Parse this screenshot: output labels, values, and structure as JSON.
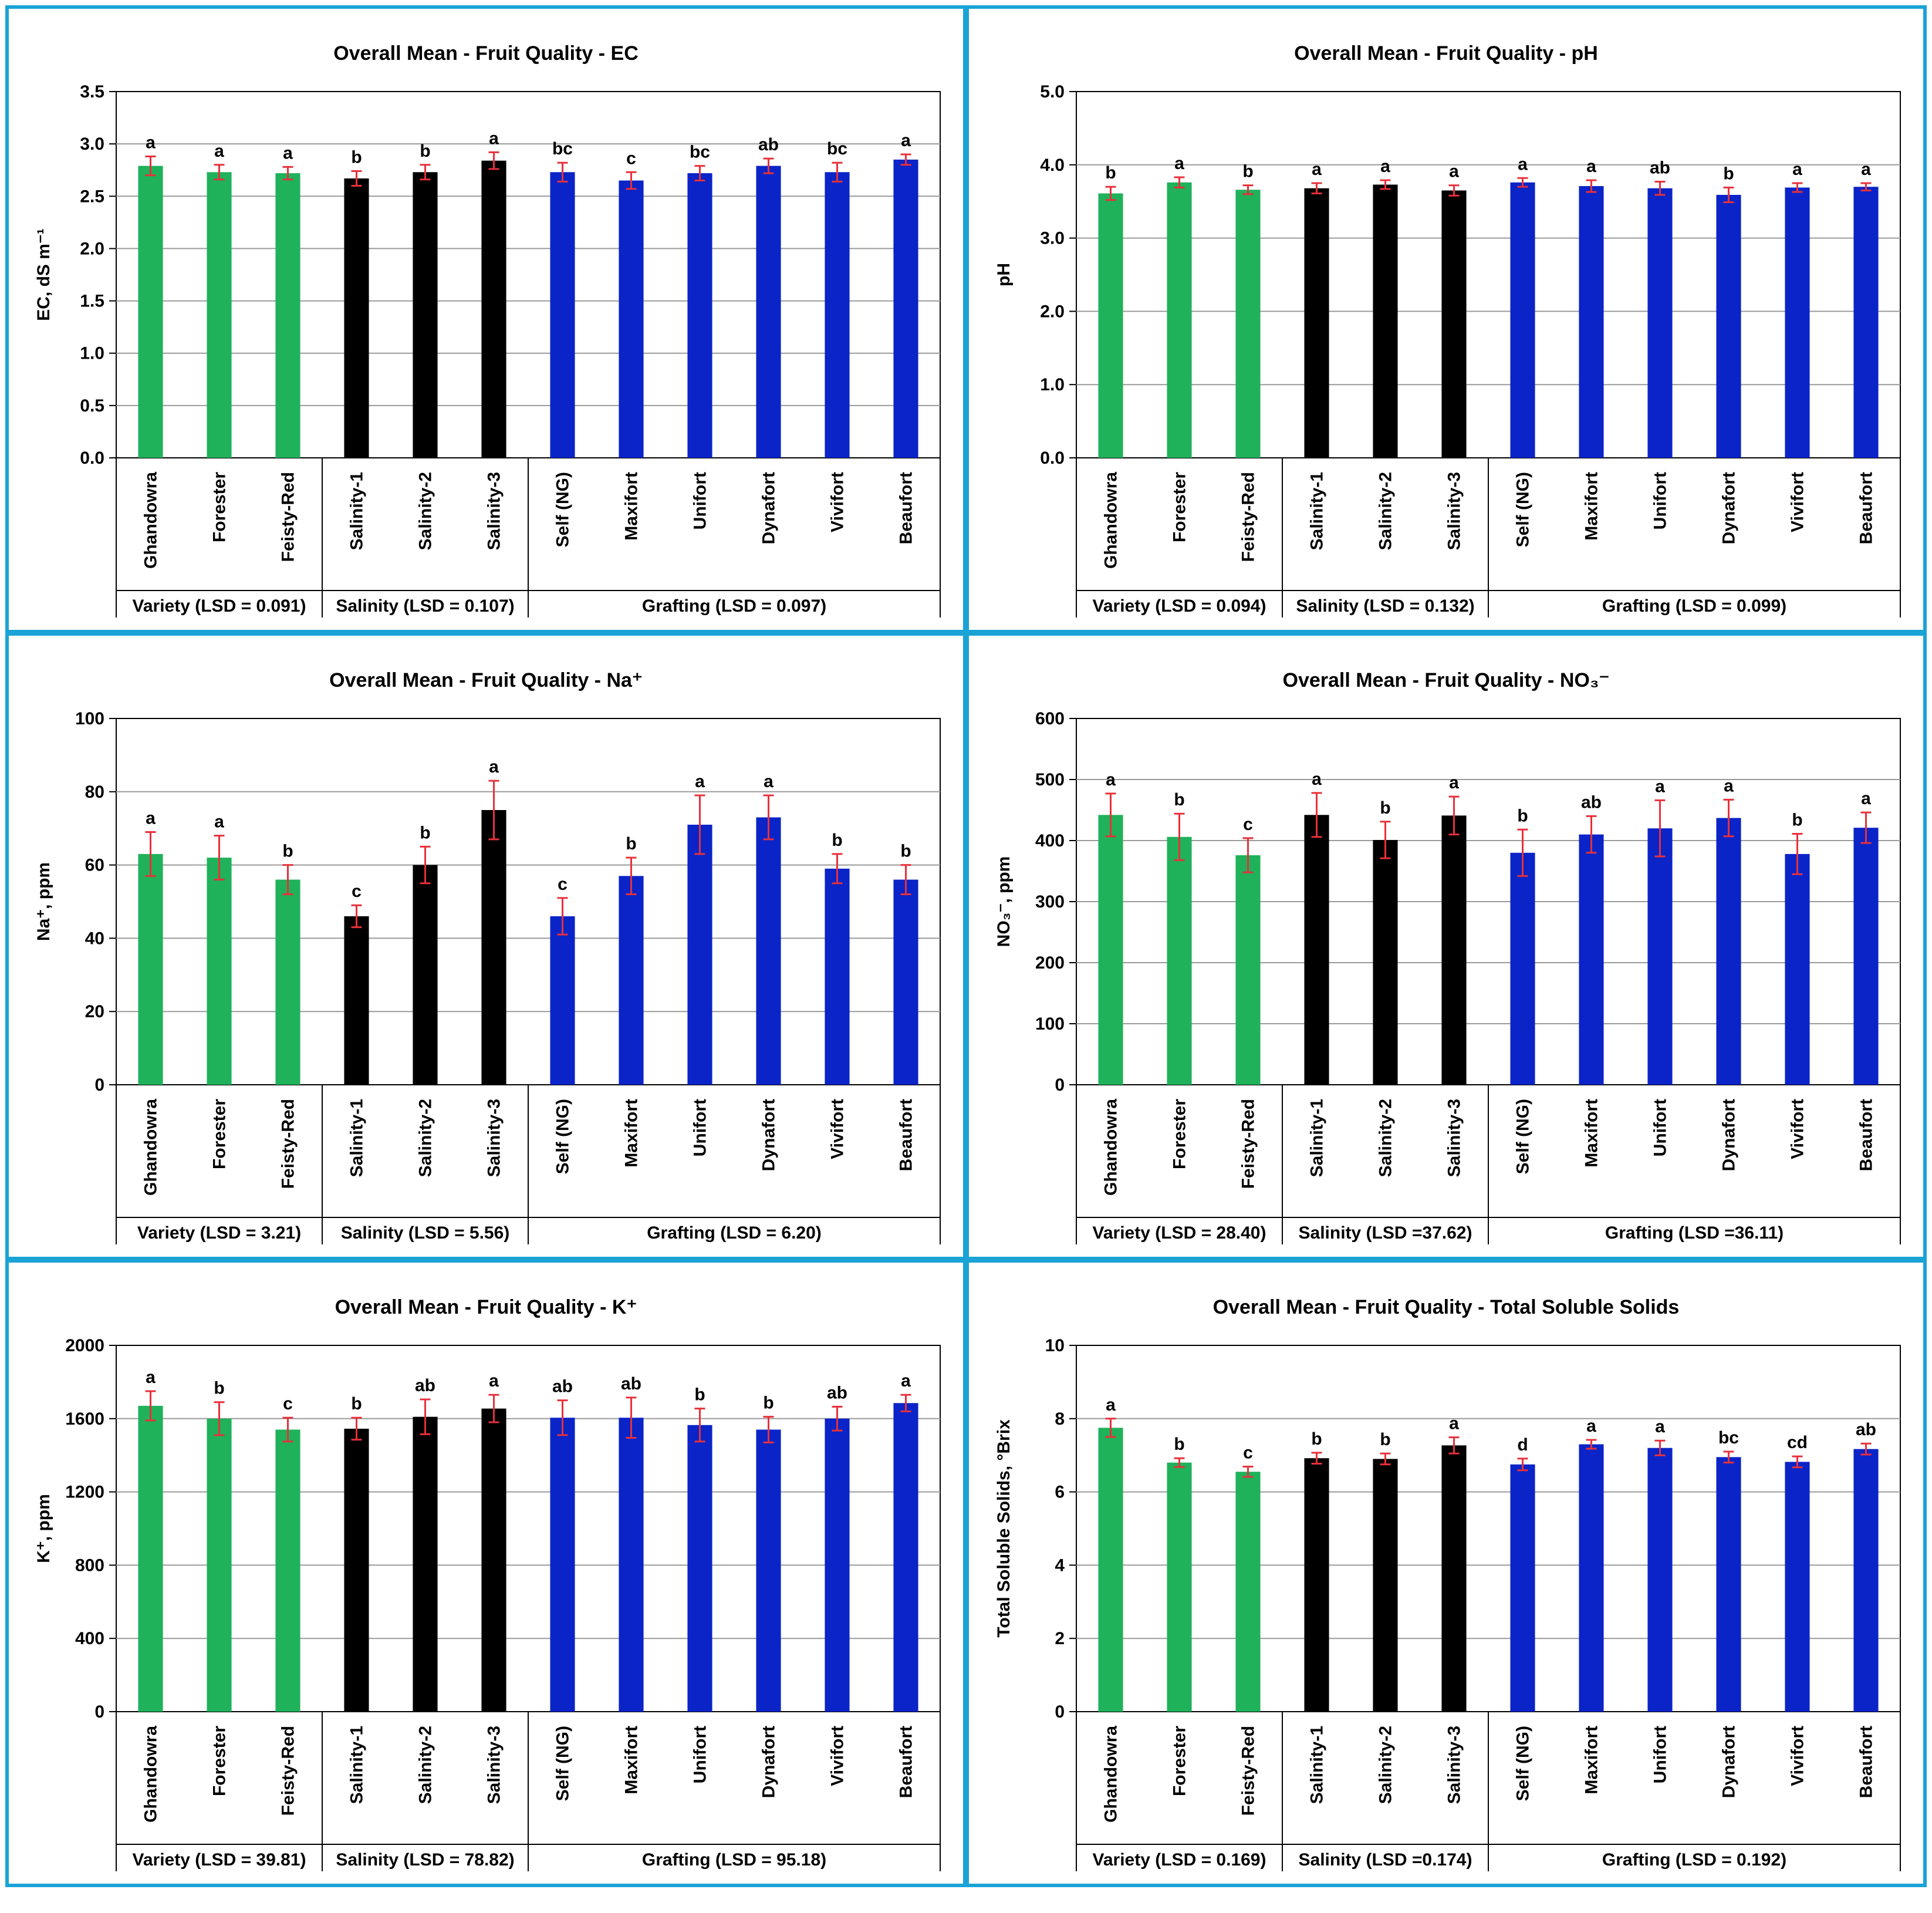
{
  "categories": [
    "Ghandowra",
    "Forester",
    "Feisty-Red",
    "Salinity-1",
    "Salinity-2",
    "Salinity-3",
    "Self (NG)",
    "Maxifort",
    "Unifort",
    "Dynafort",
    "Vivifort",
    "Beaufort"
  ],
  "group_colors": [
    "#1fb25a",
    "#1fb25a",
    "#1fb25a",
    "#000000",
    "#000000",
    "#000000",
    "#0a24c8",
    "#0a24c8",
    "#0a24c8",
    "#0a24c8",
    "#0a24c8",
    "#0a24c8"
  ],
  "chart_data": [
    {
      "type": "bar",
      "title": "Overall Mean - Fruit Quality - EC",
      "ylabel": "EC, dS m⁻¹",
      "ylim": [
        0,
        3.5
      ],
      "yticks": [
        "0.0",
        "0.5",
        "1.0",
        "1.5",
        "2.0",
        "2.5",
        "3.0",
        "3.5"
      ],
      "values": [
        2.79,
        2.73,
        2.72,
        2.67,
        2.73,
        2.84,
        2.73,
        2.65,
        2.72,
        2.79,
        2.73,
        2.85
      ],
      "errors": [
        0.09,
        0.07,
        0.06,
        0.07,
        0.07,
        0.08,
        0.09,
        0.08,
        0.07,
        0.07,
        0.09,
        0.05
      ],
      "letters": [
        "a",
        "a",
        "a",
        "b",
        "b",
        "a",
        "bc",
        "c",
        "bc",
        "ab",
        "bc",
        "a"
      ],
      "groups": [
        "Variety (LSD = 0.091)",
        "Salinity (LSD = 0.107)",
        "Grafting (LSD = 0.097)"
      ]
    },
    {
      "type": "bar",
      "title": "Overall Mean - Fruit Quality - pH",
      "ylabel": "pH",
      "ylim": [
        0,
        5
      ],
      "yticks": [
        "0.0",
        "1.0",
        "2.0",
        "3.0",
        "4.0",
        "5.0"
      ],
      "values": [
        3.61,
        3.76,
        3.66,
        3.68,
        3.73,
        3.65,
        3.76,
        3.71,
        3.68,
        3.59,
        3.69,
        3.7
      ],
      "errors": [
        0.09,
        0.07,
        0.06,
        0.07,
        0.06,
        0.07,
        0.06,
        0.08,
        0.09,
        0.1,
        0.06,
        0.05
      ],
      "letters": [
        "b",
        "a",
        "b",
        "a",
        "a",
        "a",
        "a",
        "a",
        "ab",
        "b",
        "a",
        "a"
      ],
      "groups": [
        "Variety (LSD = 0.094)",
        "Salinity (LSD = 0.132)",
        "Grafting (LSD = 0.099)"
      ]
    },
    {
      "type": "bar",
      "title": "Overall Mean - Fruit Quality - Na⁺",
      "ylabel": "Na⁺, ppm",
      "ylim": [
        0,
        100
      ],
      "yticks": [
        "0",
        "20",
        "40",
        "60",
        "80",
        "100"
      ],
      "values": [
        63,
        62,
        56,
        46,
        60,
        75,
        46,
        57,
        71,
        73,
        59,
        56
      ],
      "errors": [
        6,
        6,
        4,
        3,
        5,
        8,
        5,
        5,
        8,
        6,
        4,
        4
      ],
      "letters": [
        "a",
        "a",
        "b",
        "c",
        "b",
        "a",
        "c",
        "b",
        "a",
        "a",
        "b",
        "b"
      ],
      "groups": [
        "Variety (LSD = 3.21)",
        "Salinity (LSD = 5.56)",
        "Grafting (LSD = 6.20)"
      ]
    },
    {
      "type": "bar",
      "title": "Overall Mean - Fruit Quality - NO₃⁻",
      "ylabel": "NO₃⁻, ppm",
      "ylim": [
        0,
        600
      ],
      "yticks": [
        "0",
        "100",
        "200",
        "300",
        "400",
        "500",
        "600"
      ],
      "values": [
        442,
        406,
        376,
        442,
        401,
        441,
        380,
        410,
        420,
        437,
        378,
        421
      ],
      "errors": [
        35,
        38,
        28,
        36,
        30,
        31,
        38,
        30,
        46,
        30,
        33,
        25
      ],
      "letters": [
        "a",
        "b",
        "c",
        "a",
        "b",
        "a",
        "b",
        "ab",
        "a",
        "a",
        "b",
        "a"
      ],
      "groups": [
        "Variety (LSD = 28.40)",
        "Salinity (LSD =37.62)",
        "Grafting (LSD =36.11)"
      ]
    },
    {
      "type": "bar",
      "title": "Overall Mean - Fruit Quality - K⁺",
      "ylabel": "K⁺, ppm",
      "ylim": [
        0,
        2000
      ],
      "yticks": [
        "0",
        "400",
        "800",
        "1200",
        "1600",
        "2000"
      ],
      "values": [
        1670,
        1600,
        1540,
        1545,
        1610,
        1655,
        1605,
        1605,
        1565,
        1540,
        1600,
        1685
      ],
      "errors": [
        80,
        90,
        65,
        60,
        95,
        75,
        95,
        110,
        90,
        70,
        65,
        45
      ],
      "letters": [
        "a",
        "b",
        "c",
        "b",
        "ab",
        "a",
        "ab",
        "ab",
        "b",
        "b",
        "ab",
        "a"
      ],
      "groups": [
        "Variety (LSD = 39.81)",
        "Salinity (LSD = 78.82)",
        "Grafting (LSD = 95.18)"
      ]
    },
    {
      "type": "bar",
      "title": "Overall Mean - Fruit Quality - Total Soluble Solids",
      "ylabel": "Total Soluble Solids, °Brix",
      "ylim": [
        0,
        10
      ],
      "yticks": [
        "0",
        "2",
        "4",
        "6",
        "8",
        "10"
      ],
      "values": [
        7.75,
        6.8,
        6.55,
        6.92,
        6.9,
        7.27,
        6.75,
        7.3,
        7.2,
        6.95,
        6.82,
        7.17
      ],
      "errors": [
        0.25,
        0.12,
        0.14,
        0.15,
        0.15,
        0.22,
        0.16,
        0.12,
        0.2,
        0.15,
        0.15,
        0.15
      ],
      "letters": [
        "a",
        "b",
        "c",
        "b",
        "b",
        "a",
        "d",
        "a",
        "a",
        "bc",
        "cd",
        "ab"
      ],
      "groups": [
        "Variety (LSD = 0.169)",
        "Salinity (LSD =0.174)",
        "Grafting (LSD = 0.192)"
      ]
    }
  ]
}
